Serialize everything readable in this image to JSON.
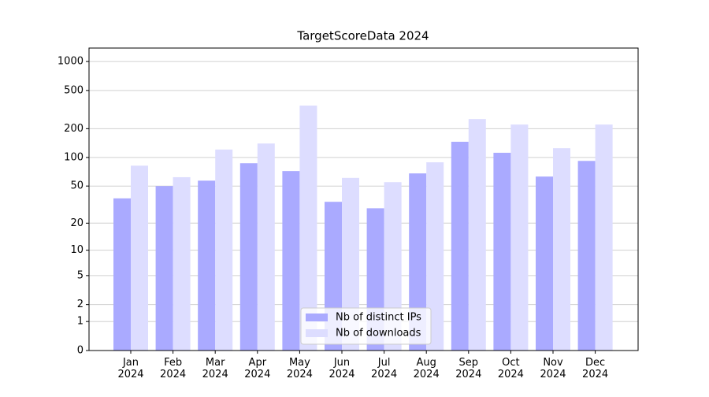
{
  "chart_data": {
    "type": "bar",
    "title": "TargetScoreData 2024",
    "categories": [
      "Jan\n2024",
      "Feb\n2024",
      "Mar\n2024",
      "Apr\n2024",
      "May\n2024",
      "Jun\n2024",
      "Jul\n2024",
      "Aug\n2024",
      "Sep\n2024",
      "Oct\n2024",
      "Nov\n2024",
      "Dec\n2024"
    ],
    "series": [
      {
        "name": "Nb of distinct IPs",
        "color": "#aaaaff",
        "values": [
          37,
          50,
          57,
          87,
          72,
          34,
          29,
          68,
          146,
          112,
          63,
          92
        ]
      },
      {
        "name": "Nb of downloads",
        "color": "#ddddff",
        "values": [
          82,
          62,
          121,
          140,
          348,
          61,
          55,
          89,
          252,
          221,
          125,
          221
        ]
      }
    ],
    "yscale": "log1p",
    "ylim": [
      0,
      1380
    ],
    "yticks": [
      0,
      1,
      2,
      5,
      10,
      20,
      50,
      100,
      200,
      500,
      1000
    ],
    "grid": true,
    "legend": "lower center"
  }
}
